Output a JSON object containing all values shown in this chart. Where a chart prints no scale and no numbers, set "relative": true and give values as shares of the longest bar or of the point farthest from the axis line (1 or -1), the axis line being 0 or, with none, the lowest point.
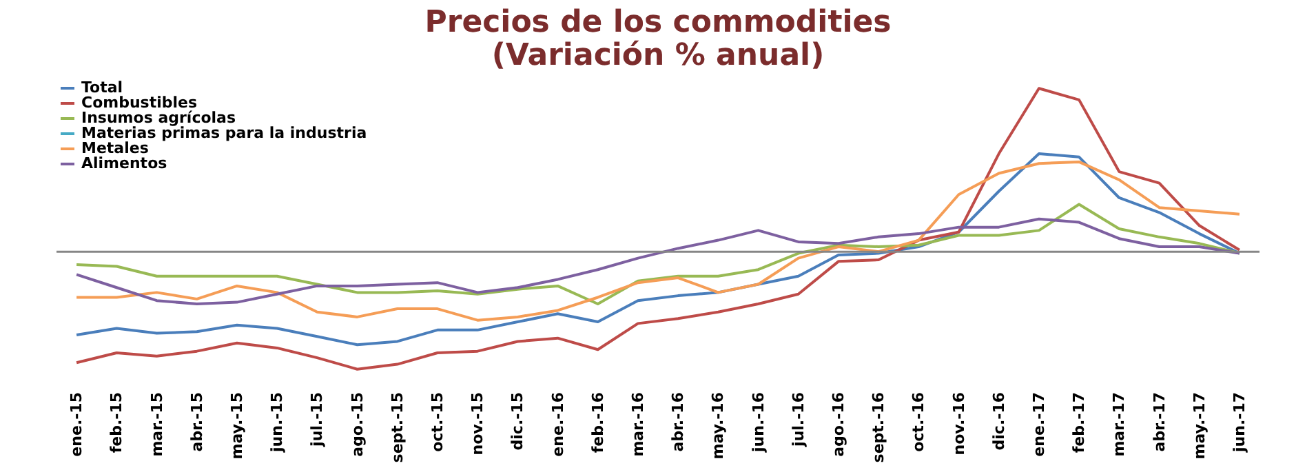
{
  "chart_data": {
    "type": "line",
    "title": "Precios de los commodities\n(Variación % anual)",
    "relative": true,
    "legend": "top left",
    "grid": false,
    "marker": "none",
    "line_style": "solid",
    "categories": [
      "ene.-15",
      "feb.-15",
      "mar.-15",
      "abr.-15",
      "may.-15",
      "jun.-15",
      "jul.-15",
      "ago.-15",
      "sept.-15",
      "oct.-15",
      "nov.-15",
      "dic.-15",
      "ene.-16",
      "feb.-16",
      "mar.-16",
      "abr.-16",
      "may.-16",
      "jun.-16",
      "jul.-16",
      "ago.-16",
      "sept.-16",
      "oct.-16",
      "nov.-16",
      "dic.-16",
      "ene.-17",
      "feb.-17",
      "mar.-17",
      "abr.-17",
      "may.-17",
      "jun.-17"
    ],
    "series": [
      {
        "name": "Total",
        "color": "#4a7ebb",
        "values": [
          -0.51,
          -0.47,
          -0.5,
          -0.49,
          -0.45,
          -0.47,
          -0.52,
          -0.57,
          -0.55,
          -0.48,
          -0.48,
          -0.43,
          -0.38,
          -0.43,
          -0.3,
          -0.27,
          -0.25,
          -0.2,
          -0.15,
          -0.02,
          -0.01,
          0.03,
          0.12,
          0.37,
          0.6,
          0.58,
          0.33,
          0.24,
          0.11,
          -0.01
        ]
      },
      {
        "name": "Combustibles",
        "color": "#be4b48",
        "values": [
          -0.68,
          -0.62,
          -0.64,
          -0.61,
          -0.56,
          -0.59,
          -0.65,
          -0.72,
          -0.69,
          -0.62,
          -0.61,
          -0.55,
          -0.53,
          -0.6,
          -0.44,
          -0.41,
          -0.37,
          -0.32,
          -0.26,
          -0.06,
          -0.05,
          0.07,
          0.12,
          0.6,
          1,
          0.93,
          0.49,
          0.42,
          0.16,
          0.01
        ]
      },
      {
        "name": "Insumos agrícolas",
        "color": "#98b954",
        "values": [
          -0.08,
          -0.09,
          -0.15,
          -0.15,
          -0.15,
          -0.15,
          -0.2,
          -0.25,
          -0.25,
          -0.24,
          -0.26,
          -0.23,
          -0.21,
          -0.32,
          -0.18,
          -0.15,
          -0.15,
          -0.11,
          -0.01,
          0.04,
          0.03,
          0.04,
          0.1,
          0.1,
          0.13,
          0.29,
          0.14,
          0.09,
          0.05,
          -0.01
        ]
      },
      {
        "name": "Materias primas para la industria",
        "color": "#46aac5",
        "values": [
          null,
          null,
          null,
          null,
          null,
          null,
          null,
          null,
          null,
          null,
          null,
          null,
          null,
          null,
          null,
          null,
          null,
          null,
          null,
          null,
          null,
          null,
          null,
          null,
          null,
          null,
          null,
          null,
          null,
          null
        ]
      },
      {
        "name": "Metales",
        "color": "#f59d56",
        "values": [
          -0.28,
          -0.28,
          -0.25,
          -0.29,
          -0.21,
          -0.25,
          -0.37,
          -0.4,
          -0.35,
          -0.35,
          -0.42,
          -0.4,
          -0.36,
          -0.28,
          -0.19,
          -0.16,
          -0.25,
          -0.2,
          -0.04,
          0.03,
          0,
          0.07,
          0.35,
          0.48,
          0.54,
          0.55,
          0.44,
          0.27,
          0.25,
          0.23
        ]
      },
      {
        "name": "Alimentos",
        "color": "#7d60a0",
        "values": [
          -0.14,
          -0.22,
          -0.3,
          -0.32,
          -0.31,
          -0.26,
          -0.21,
          -0.21,
          -0.2,
          -0.19,
          -0.25,
          -0.22,
          -0.17,
          -0.11,
          -0.04,
          0.02,
          0.07,
          0.13,
          0.06,
          0.05,
          0.09,
          0.11,
          0.15,
          0.15,
          0.2,
          0.18,
          0.08,
          0.03,
          0.03,
          -0.01
        ]
      }
    ]
  }
}
